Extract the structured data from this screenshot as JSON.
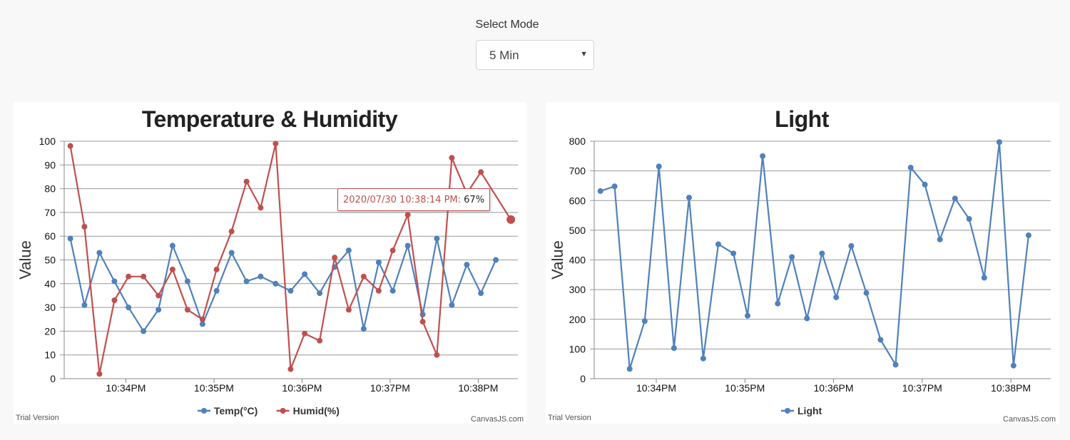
{
  "mode": {
    "label": "Select Mode",
    "selected": "5 Min",
    "arrow_icon": "caret-down-icon"
  },
  "chart_data": [
    {
      "type": "line",
      "title": "Temperature & Humidity",
      "ylabel": "Value",
      "xlabel": "",
      "ylim": [
        0,
        100
      ],
      "yticks": [
        0,
        10,
        20,
        30,
        40,
        50,
        60,
        70,
        80,
        90,
        100
      ],
      "xlim_minutes": [
        33.3,
        38.45
      ],
      "xticks": [
        {
          "label": "10:34PM",
          "minute": 34
        },
        {
          "label": "10:35PM",
          "minute": 35
        },
        {
          "label": "10:36PM",
          "minute": 36
        },
        {
          "label": "10:37PM",
          "minute": 37
        },
        {
          "label": "10:38PM",
          "minute": 38
        }
      ],
      "x_minutes": [
        33.37,
        33.53,
        33.7,
        33.87,
        34.03,
        34.2,
        34.37,
        34.53,
        34.7,
        34.87,
        35.03,
        35.2,
        35.37,
        35.53,
        35.7,
        35.87,
        36.03,
        36.2,
        36.37,
        36.53,
        36.7,
        36.87,
        37.03,
        37.2,
        37.37,
        37.53,
        37.7,
        37.87,
        38.03,
        38.2,
        38.37
      ],
      "series": [
        {
          "name": "Temp(°C)",
          "color": "#4f81bc",
          "values": [
            59,
            31,
            53,
            41,
            30,
            20,
            29,
            56,
            41,
            23,
            37,
            53,
            41,
            43,
            40,
            37,
            44,
            36,
            47,
            54,
            21,
            49,
            37,
            56,
            27,
            59,
            31,
            48,
            36,
            50,
            null
          ]
        },
        {
          "name": "Humid(%)",
          "color": "#c0504e",
          "values": [
            98,
            64,
            2,
            33,
            43,
            43,
            35,
            46,
            29,
            25,
            46,
            62,
            83,
            72,
            99,
            4,
            19,
            16,
            51,
            29,
            43,
            37,
            54,
            69,
            24,
            10,
            93,
            78,
            87,
            null,
            67
          ]
        }
      ],
      "legend": "bottom-center",
      "credit": "CanvasJS.com",
      "watermark": "Trial Version",
      "tooltip": {
        "time": "2020/07/30 10:38:14 PM:",
        "value": "67%"
      }
    },
    {
      "type": "line",
      "title": "Light",
      "ylabel": "Value",
      "xlabel": "",
      "ylim": [
        0,
        800
      ],
      "yticks": [
        0,
        100,
        200,
        300,
        400,
        500,
        600,
        700,
        800
      ],
      "xlim_minutes": [
        33.3,
        38.45
      ],
      "xticks": [
        {
          "label": "10:34PM",
          "minute": 34
        },
        {
          "label": "10:35PM",
          "minute": 35
        },
        {
          "label": "10:36PM",
          "minute": 36
        },
        {
          "label": "10:37PM",
          "minute": 37
        },
        {
          "label": "10:38PM",
          "minute": 38
        }
      ],
      "x_minutes": [
        33.37,
        33.53,
        33.7,
        33.87,
        34.03,
        34.2,
        34.37,
        34.53,
        34.7,
        34.87,
        35.03,
        35.2,
        35.37,
        35.53,
        35.7,
        35.87,
        36.03,
        36.2,
        36.37,
        36.53,
        36.7,
        36.87,
        37.03,
        37.2,
        37.37,
        37.53,
        37.7,
        37.87,
        38.03,
        38.2,
        38.37
      ],
      "series": [
        {
          "name": "Light",
          "color": "#4f81bc",
          "values": [
            632,
            648,
            33,
            194,
            715,
            103,
            610,
            68,
            453,
            422,
            212,
            750,
            253,
            410,
            203,
            422,
            274,
            447,
            289,
            131,
            47,
            711,
            654,
            469,
            607,
            538,
            340,
            797,
            44,
            483,
            null
          ]
        }
      ],
      "legend": "bottom-center",
      "credit": "CanvasJS.com",
      "watermark": "Trial Version"
    }
  ]
}
